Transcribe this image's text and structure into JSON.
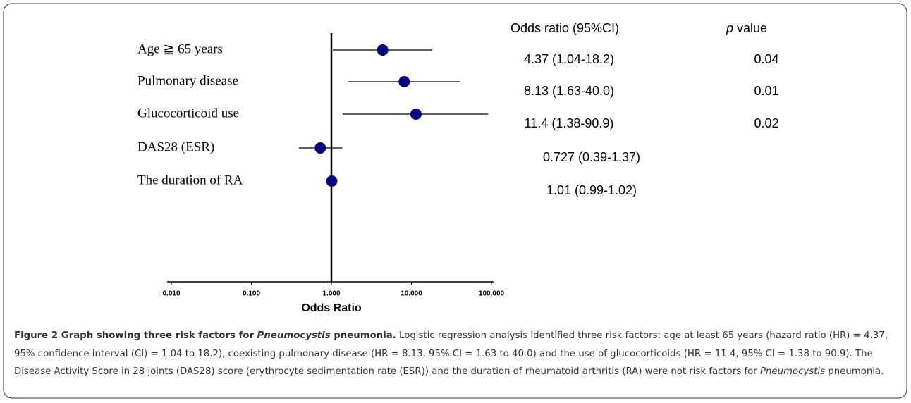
{
  "chart_data": {
    "type": "forest",
    "categories": [
      "Age ≧ 65 years",
      "Pulmonary disease",
      "Glucocorticoid use",
      "DAS28 (ESR)",
      "The duration of RA"
    ],
    "values": [
      4.37,
      8.13,
      11.4,
      0.727,
      1.01
    ],
    "lower": [
      1.04,
      1.63,
      1.38,
      0.39,
      0.99
    ],
    "upper": [
      18.2,
      40.0,
      90.9,
      1.37,
      1.02
    ],
    "value_labels": [
      "4.37 (1.04-18.2)",
      "8.13 (1.63-40.0)",
      "11.4 (1.38-90.9)",
      "0.727 (0.39-1.37)",
      "1.01 (0.99-1.02)"
    ],
    "p_values": [
      0.04,
      0.01,
      0.02,
      null,
      null
    ],
    "or_header": "Odds ratio (95%CI)",
    "p_header": {
      "italic": "p",
      "text": "value"
    },
    "xlabel": "Odds Ratio",
    "xscale": "log",
    "xlim": [
      0.01,
      100
    ],
    "xticks": [
      {
        "value": 0.01,
        "label": "0.010"
      },
      {
        "value": 0.1,
        "label": "0.100"
      },
      {
        "value": 1,
        "label": "1.000"
      },
      {
        "value": 10,
        "label": "10.000"
      },
      {
        "value": 100,
        "label": "100.000"
      }
    ],
    "reference": 1,
    "color": "#000080"
  },
  "caption": {
    "label": "Figure 2",
    "title": [
      "Graph showing three risk factors for ",
      "Pneumocystis",
      " pneumonia."
    ],
    "body": [
      "Logistic regression analysis identified three risk factors: age at least 65 years (hazard ratio (HR) = 4.37, 95% confidence interval (CI) = 1.04 to 18.2), coexisting pulmonary disease (HR = 8.13, 95% CI = 1.63 to 40.0) and the use of glucocorticoids (HR = 11.4, 95% CI = 1.38 to 90.9). The Disease Activity Score in 28 joints (DAS28) score (erythrocyte sedimentation rate (ESR)) and the duration of rheumatoid arthritis (RA) were not risk factors for ",
      "Pneumocystis",
      " pneumonia."
    ]
  }
}
